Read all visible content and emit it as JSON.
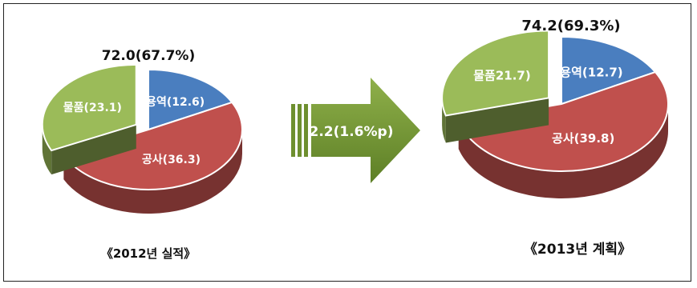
{
  "chart_data": [
    {
      "type": "pie",
      "total_label": "72.0(67.7%)",
      "caption": "《2012년 실적》",
      "categories": [
        "용역",
        "공사",
        "물품"
      ],
      "values": [
        12.6,
        36.3,
        23.1
      ],
      "labels": [
        "용역(12.6)",
        "공사(36.3)",
        "물품(23.1)"
      ],
      "exploded": [
        "물품"
      ],
      "colors": [
        "#4a7ebf",
        "#c0504d",
        "#9bbb59"
      ]
    },
    {
      "type": "pie",
      "total_label": "74.2(69.3%)",
      "caption": "《2013년 계획》",
      "categories": [
        "용역",
        "공사",
        "물품"
      ],
      "values": [
        12.7,
        39.8,
        21.7
      ],
      "labels": [
        "용역(12.7)",
        "공사(39.8)",
        "물품21.7)"
      ],
      "exploded": [
        "물품"
      ],
      "colors": [
        "#4a7ebf",
        "#c0504d",
        "#9bbb59"
      ]
    }
  ],
  "arrow": {
    "label": "2.2(1.6%p)",
    "color": "#6e8f2f"
  }
}
